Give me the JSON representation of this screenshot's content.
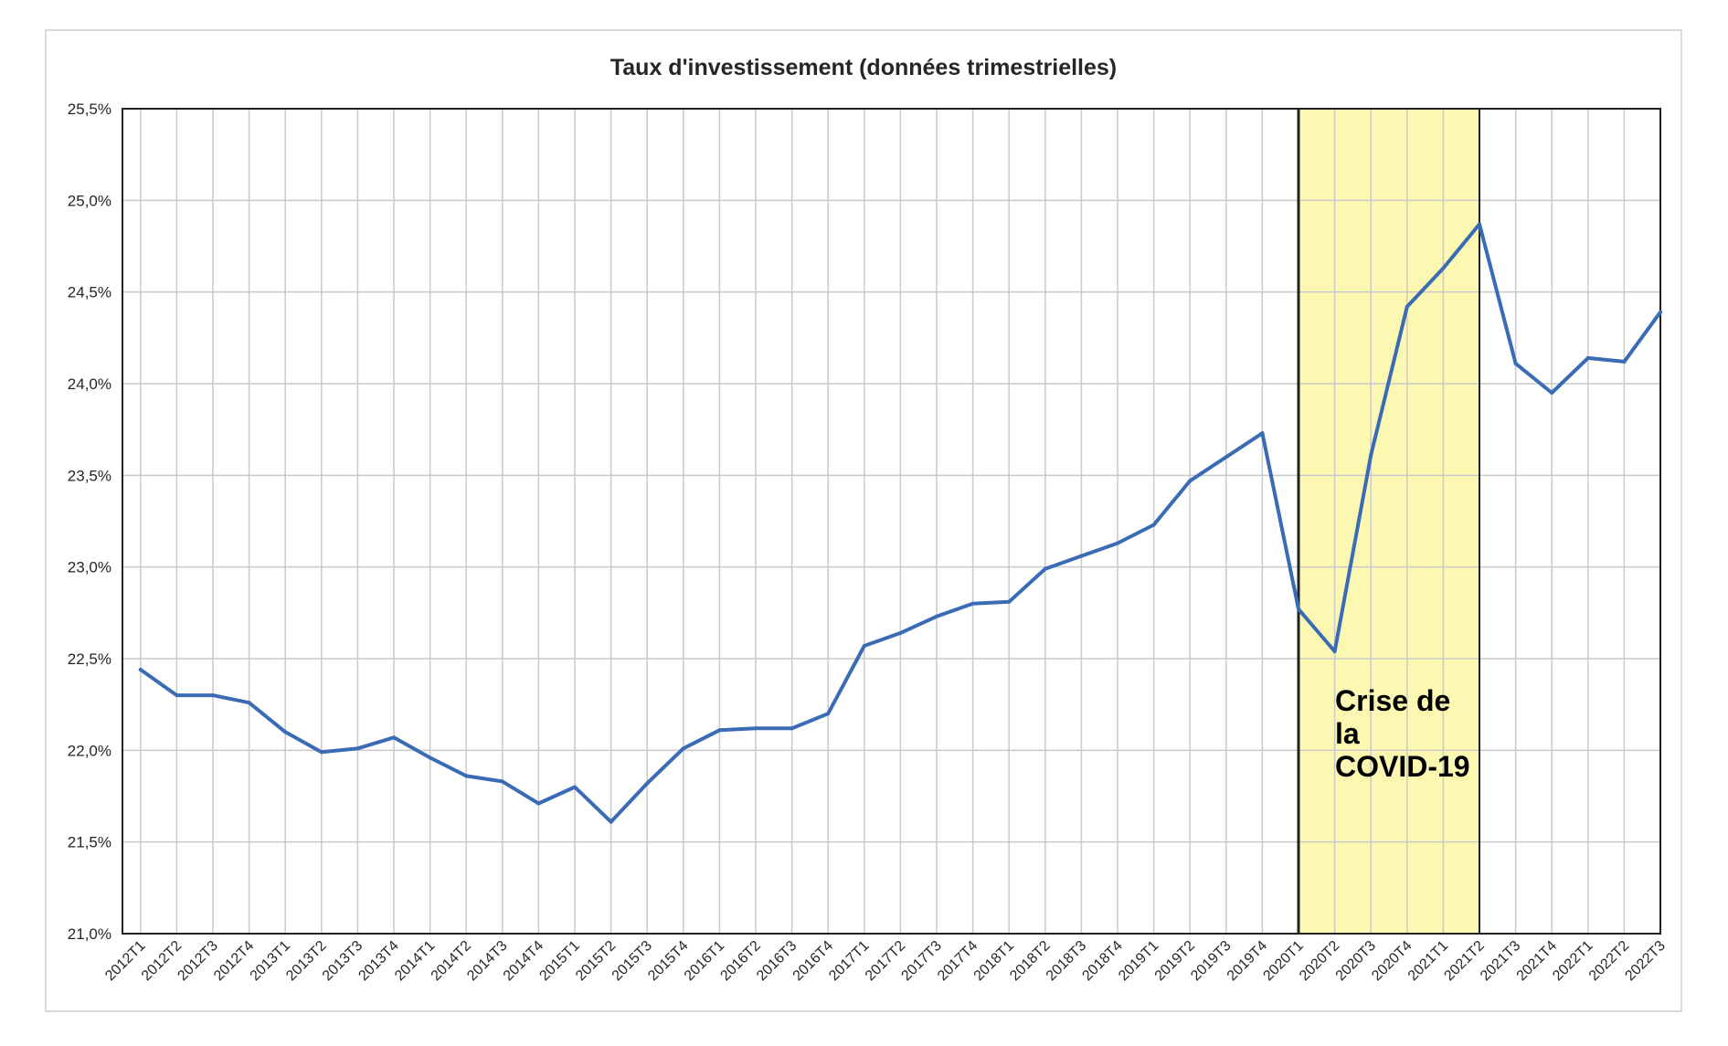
{
  "chart_data": {
    "type": "line",
    "title": "Taux d'investissement (données trimestrielles)",
    "xlabel": "",
    "ylabel": "",
    "ylim": [
      21.0,
      25.5
    ],
    "yticks": [
      "21,0%",
      "21,5%",
      "22,0%",
      "22,5%",
      "23,0%",
      "23,5%",
      "24,0%",
      "24,5%",
      "25,0%",
      "25,5%"
    ],
    "grid": true,
    "x": [
      "2012T1",
      "2012T2",
      "2012T3",
      "2012T4",
      "2013T1",
      "2013T2",
      "2013T3",
      "2013T4",
      "2014T1",
      "2014T2",
      "2014T3",
      "2014T4",
      "2015T1",
      "2015T2",
      "2015T3",
      "2015T4",
      "2016T1",
      "2016T2",
      "2016T3",
      "2016T4",
      "2017T1",
      "2017T2",
      "2017T3",
      "2017T4",
      "2018T1",
      "2018T2",
      "2018T3",
      "2018T4",
      "2019T1",
      "2019T2",
      "2019T3",
      "2019T4",
      "2020T1",
      "2020T2",
      "2020T3",
      "2020T4",
      "2021T1",
      "2021T2",
      "2021T3",
      "2021T4",
      "2022T1",
      "2022T2",
      "2022T3"
    ],
    "series": [
      {
        "color": "#3a6bb5",
        "values": [
          22.44,
          22.3,
          22.3,
          22.26,
          22.1,
          21.99,
          22.01,
          22.07,
          21.96,
          21.86,
          21.83,
          21.71,
          21.8,
          21.61,
          21.82,
          22.01,
          22.11,
          22.12,
          22.12,
          22.2,
          22.57,
          22.64,
          22.73,
          22.8,
          22.81,
          22.99,
          23.06,
          23.13,
          23.23,
          23.47,
          23.6,
          23.73,
          22.77,
          22.54,
          23.61,
          24.42,
          24.63,
          24.87,
          24.11,
          23.95,
          24.14,
          24.12,
          24.39
        ]
      }
    ],
    "highlight": {
      "from": "2020T1",
      "to": "2021T2",
      "color": "#fcf8b2",
      "label_lines": [
        "Crise de",
        "la",
        "COVID-19"
      ]
    }
  }
}
